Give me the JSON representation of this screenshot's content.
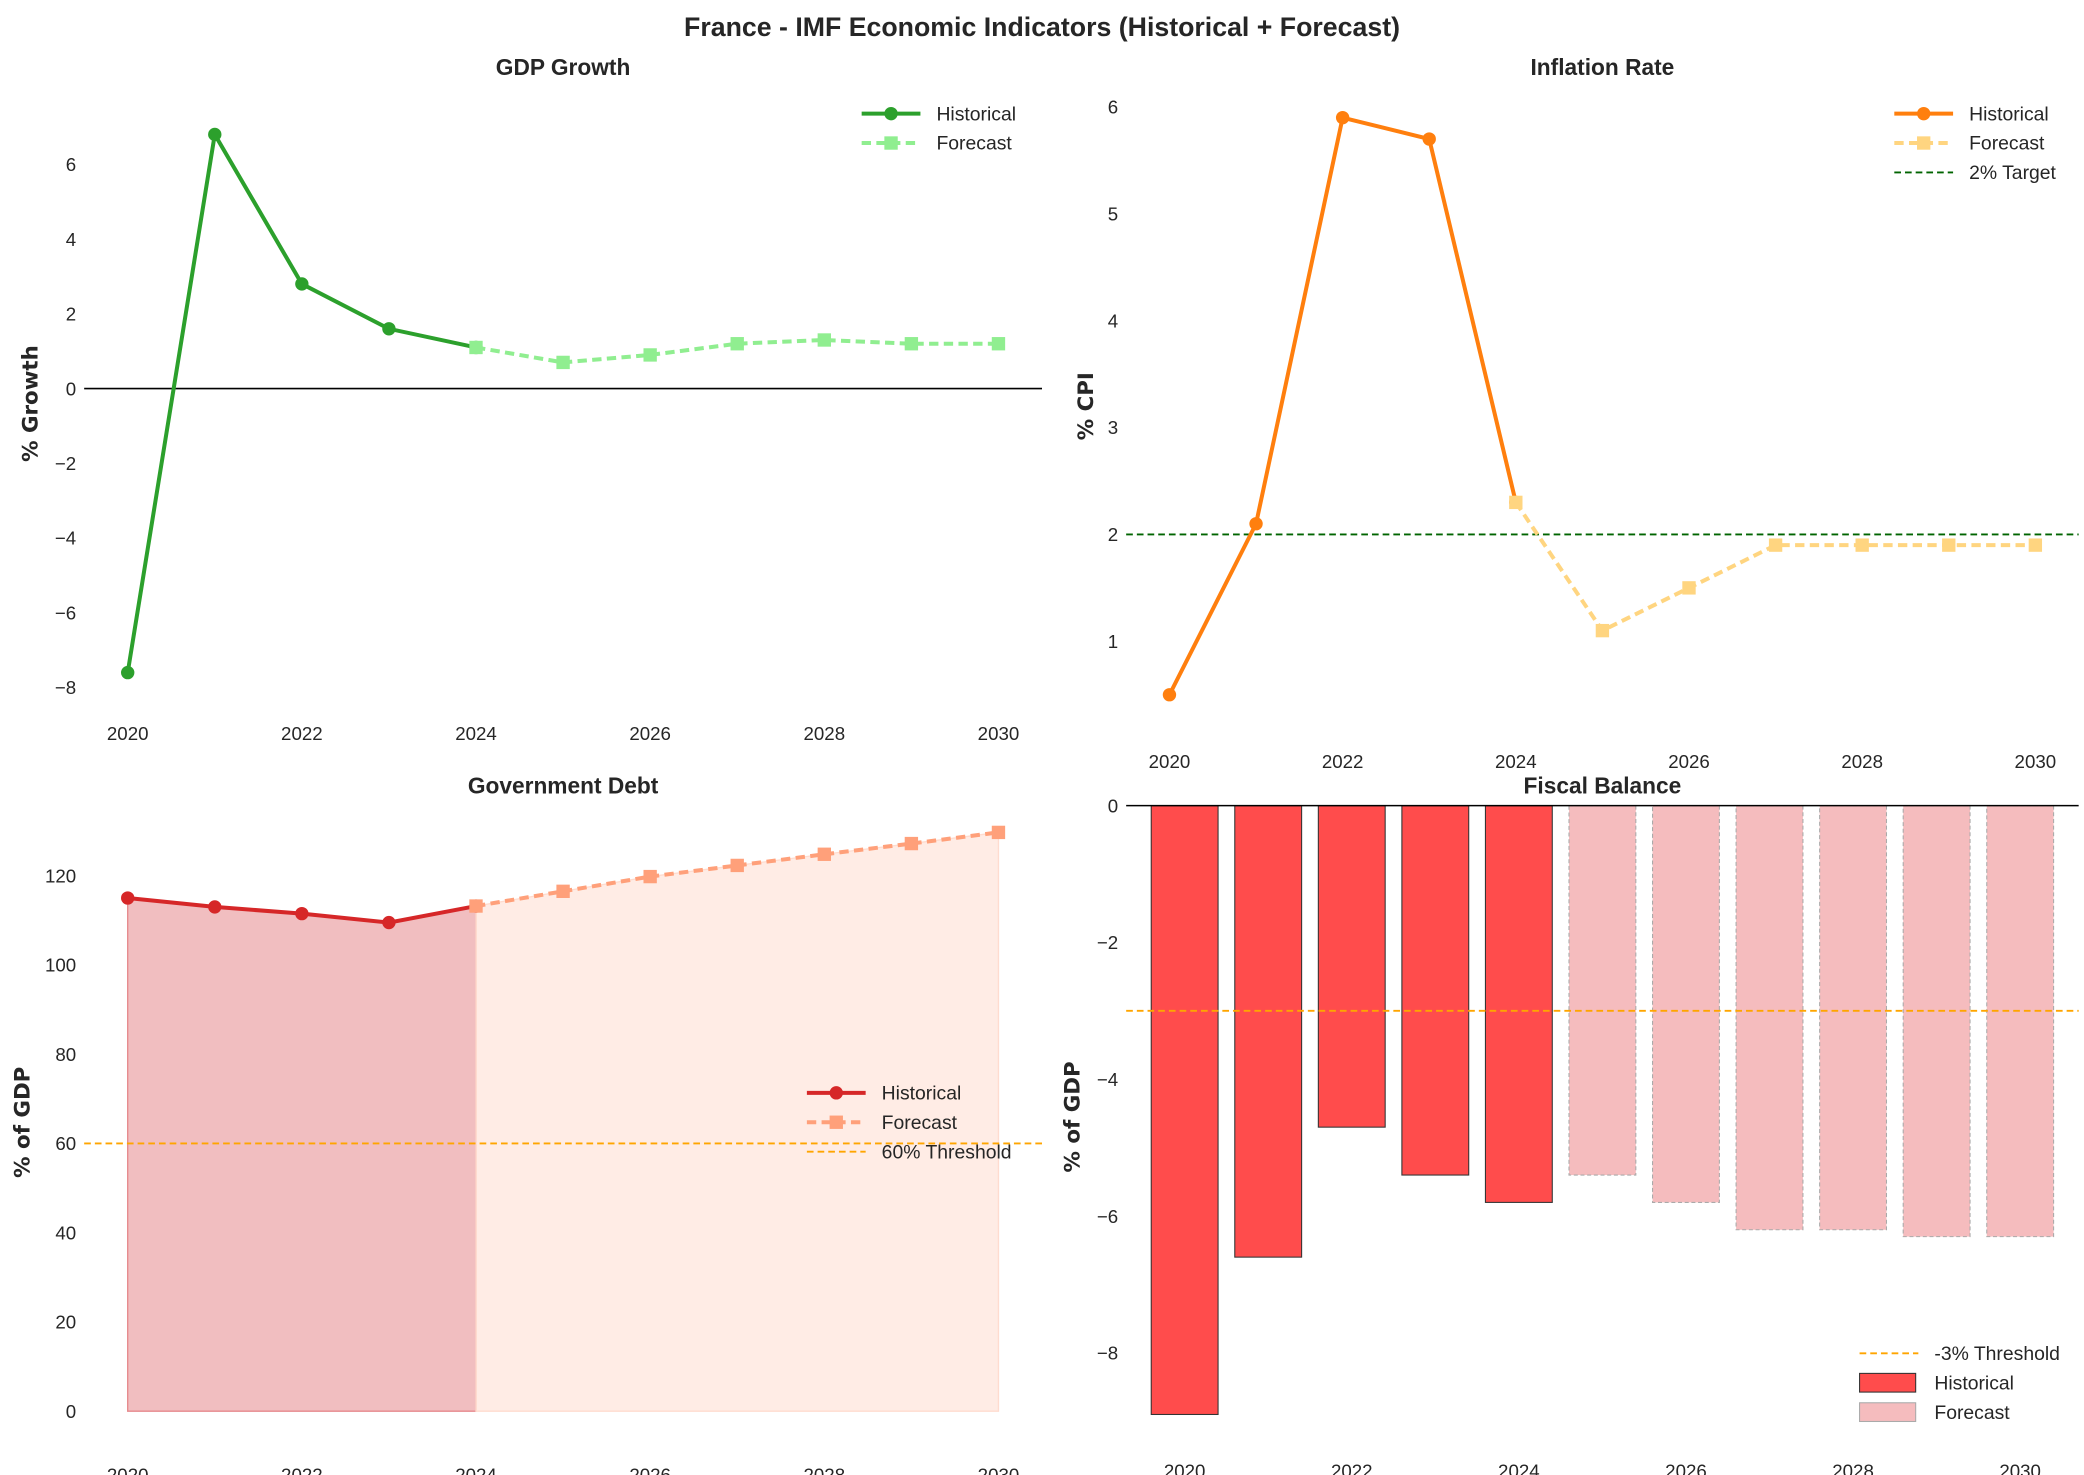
{
  "title": "France - IMF Economic Indicators (Historical + Forecast)",
  "chart_data": [
    {
      "id": "gdp",
      "type": "line",
      "title": "GDP Growth",
      "ylabel": "% Growth",
      "xlabel": "",
      "xlim": [
        2019.5,
        2030.5
      ],
      "ylim": [
        -8.3,
        7.5
      ],
      "xticks": [
        2020,
        2022,
        2024,
        2026,
        2028,
        2030
      ],
      "yticks": [
        -8,
        -6,
        -4,
        -2,
        0,
        2,
        4,
        6
      ],
      "grid": false,
      "legend_placement": "top-right",
      "hlines": [
        {
          "y": 0,
          "color": "#000000",
          "style": "solid"
        }
      ],
      "series": [
        {
          "name": "Historical",
          "color": "#2ca02c",
          "style": "solid",
          "marker": "circle",
          "x": [
            2020,
            2021,
            2022,
            2023,
            2024
          ],
          "y": [
            -7.6,
            6.8,
            2.8,
            1.6,
            1.1
          ]
        },
        {
          "name": "Forecast",
          "color": "#90ee90",
          "style": "dashed",
          "marker": "square",
          "x": [
            2024,
            2025,
            2026,
            2027,
            2028,
            2029,
            2030
          ],
          "y": [
            1.1,
            0.7,
            0.9,
            1.2,
            1.3,
            1.2,
            1.2
          ]
        }
      ]
    },
    {
      "id": "inflation",
      "type": "line",
      "title": "Inflation Rate",
      "ylabel": "% CPI",
      "xlabel": "",
      "xlim": [
        2019.5,
        2030.5
      ],
      "ylim": [
        0.2,
        6.2
      ],
      "xticks": [
        2020,
        2022,
        2024,
        2026,
        2028,
        2030
      ],
      "yticks": [
        1,
        2,
        3,
        4,
        5,
        6
      ],
      "grid": false,
      "legend_placement": "top-right",
      "series": [
        {
          "name": "Historical",
          "color": "#ff7f0e",
          "style": "solid",
          "marker": "circle",
          "x": [
            2020,
            2021,
            2022,
            2023,
            2024
          ],
          "y": [
            0.5,
            2.1,
            5.9,
            5.7,
            2.3
          ]
        },
        {
          "name": "Forecast",
          "color": "#ffd580",
          "style": "dashed",
          "marker": "square",
          "x": [
            2024,
            2025,
            2026,
            2027,
            2028,
            2029,
            2030
          ],
          "y": [
            2.3,
            1.1,
            1.5,
            1.9,
            1.9,
            1.9,
            1.9
          ]
        }
      ],
      "hlines": [
        {
          "y": 2,
          "name": "2% Target",
          "color": "#006400",
          "style": "dashed"
        }
      ]
    },
    {
      "id": "debt",
      "type": "area",
      "title": "Government Debt",
      "ylabel": "% of GDP",
      "xlabel": "",
      "xlim": [
        2019.5,
        2030.5
      ],
      "ylim": [
        -6.5,
        136
      ],
      "xticks": [
        2020,
        2022,
        2024,
        2026,
        2028,
        2030
      ],
      "yticks": [
        0,
        20,
        40,
        60,
        80,
        100,
        120
      ],
      "grid": false,
      "legend_placement": "center-right",
      "series": [
        {
          "name": "Historical",
          "color": "#d62728",
          "fill": "#e6888c",
          "style": "solid",
          "marker": "circle",
          "x": [
            2020,
            2021,
            2022,
            2023,
            2024
          ],
          "y": [
            115,
            113,
            111.5,
            109.5,
            113.2
          ]
        },
        {
          "name": "Forecast",
          "color": "#ffa07a",
          "fill": "#ffdccf",
          "style": "dashed",
          "marker": "square",
          "x": [
            2024,
            2025,
            2026,
            2027,
            2028,
            2029,
            2030
          ],
          "y": [
            113.2,
            116.5,
            119.8,
            122.3,
            124.8,
            127.2,
            129.7
          ]
        }
      ],
      "hlines": [
        {
          "y": 60,
          "name": "60% Threshold",
          "color": "#ffa500",
          "style": "dashed"
        }
      ]
    },
    {
      "id": "fiscal",
      "type": "bar",
      "title": "Fiscal Balance",
      "ylabel": "% of GDP",
      "xlabel": "",
      "xlim": [
        2019.3,
        2030.7
      ],
      "ylim": [
        -9.1,
        0
      ],
      "xticks": [
        2020,
        2022,
        2024,
        2026,
        2028,
        2030
      ],
      "yticks": [
        -8,
        -6,
        -4,
        -2,
        0
      ],
      "grid": false,
      "legend_placement": "bottom-right",
      "hlines": [
        {
          "y": 0,
          "color": "#000000",
          "style": "solid"
        },
        {
          "y": -3,
          "name": "-3% Threshold",
          "color": "#ffa500",
          "style": "dashed"
        }
      ],
      "series": [
        {
          "name": "Historical",
          "color": "#ff4c4c",
          "edge": "#333333",
          "x": [
            2020,
            2021,
            2022,
            2023,
            2024
          ],
          "y": [
            -8.9,
            -6.6,
            -4.7,
            -5.4,
            -5.8
          ]
        },
        {
          "name": "Forecast",
          "color": "#f5bcbe",
          "edge": "#aaaaaa",
          "x": [
            2025,
            2026,
            2027,
            2028,
            2029,
            2030
          ],
          "y": [
            -5.4,
            -5.8,
            -6.2,
            -6.2,
            -6.3,
            -6.3
          ]
        }
      ]
    }
  ]
}
